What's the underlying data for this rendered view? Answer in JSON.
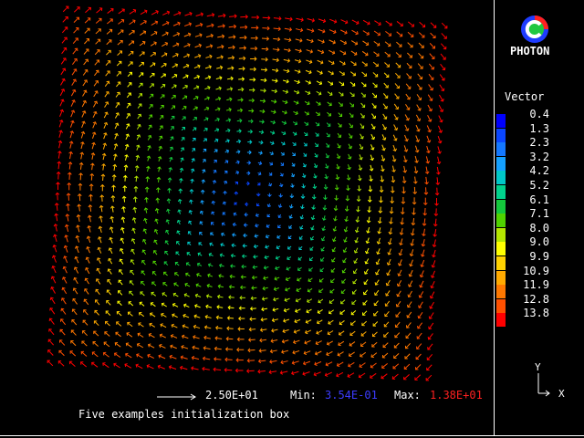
{
  "app_title": "PHOTON",
  "caption": "Five examples initialization box",
  "scale_label": "2.50E+01",
  "min_label": "Min:",
  "min_value": "3.54E-01",
  "max_label": "Max:",
  "max_value": "1.38E+01",
  "legend": {
    "title": "Vector",
    "ticks": [
      "0.4",
      "1.3",
      "2.3",
      "3.2",
      "4.2",
      "5.2",
      "6.1",
      "7.1",
      "8.0",
      "9.0",
      "9.9",
      "10.9",
      "11.9",
      "12.8",
      "13.8"
    ],
    "colors": [
      "#0000ff",
      "#0a46ff",
      "#1478ff",
      "#14a0ff",
      "#00c8c8",
      "#00d28c",
      "#14c83c",
      "#50d200",
      "#b4e600",
      "#ffff00",
      "#ffd200",
      "#ffaa00",
      "#ff7800",
      "#ff5000",
      "#ff0000"
    ]
  },
  "axes": {
    "y": "Y",
    "x": "X"
  },
  "colors": {
    "min": "#0000ff",
    "max": "#ff0000",
    "frame": "#ffffff"
  },
  "field": {
    "min": 0.354,
    "max": 13.8
  }
}
